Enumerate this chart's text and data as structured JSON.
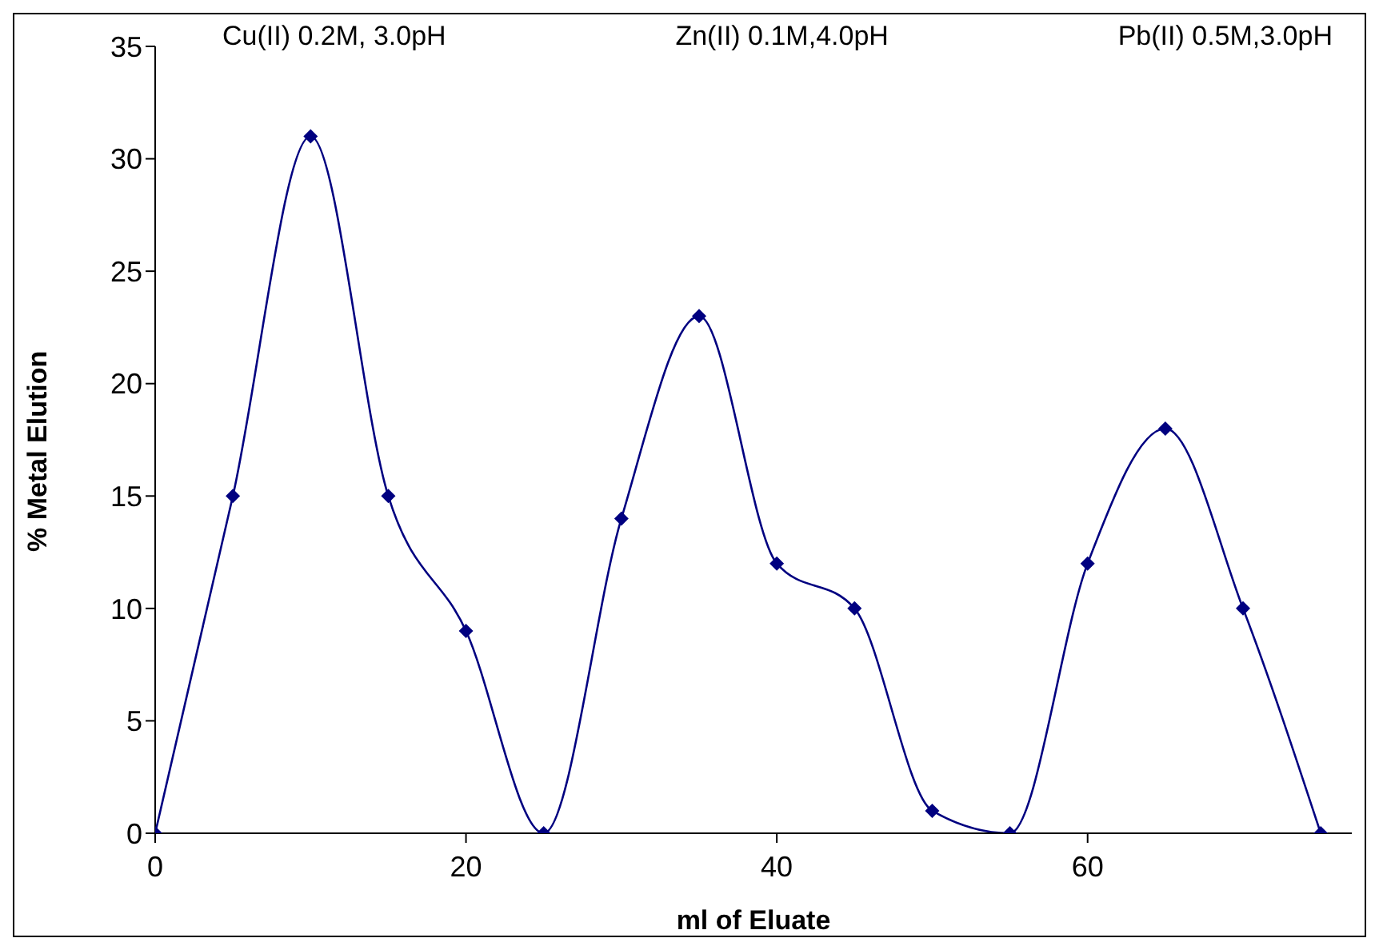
{
  "chart_data": {
    "type": "line",
    "xlabel": "ml of Eluate",
    "ylabel": "% Metal Elution",
    "annotations": [
      "Cu(II) 0.2M, 3.0pH",
      "Zn(II) 0.1M,4.0pH",
      "Pb(II) 0.5M,3.0pH"
    ],
    "x": [
      0,
      5,
      10,
      15,
      20,
      25,
      30,
      35,
      40,
      45,
      50,
      55,
      60,
      65,
      70,
      75
    ],
    "series": [
      {
        "color": "#000080",
        "values": [
          0,
          15,
          31,
          15,
          9,
          0,
          14,
          23,
          12,
          10,
          1,
          0,
          12,
          18,
          10,
          0
        ]
      }
    ],
    "xlim": [
      0,
      77
    ],
    "xticks": [
      0,
      20,
      40,
      60
    ],
    "ylim": [
      0,
      35
    ],
    "yticks": [
      0,
      5,
      10,
      15,
      20,
      25,
      30,
      35
    ],
    "marker": "diamond"
  }
}
